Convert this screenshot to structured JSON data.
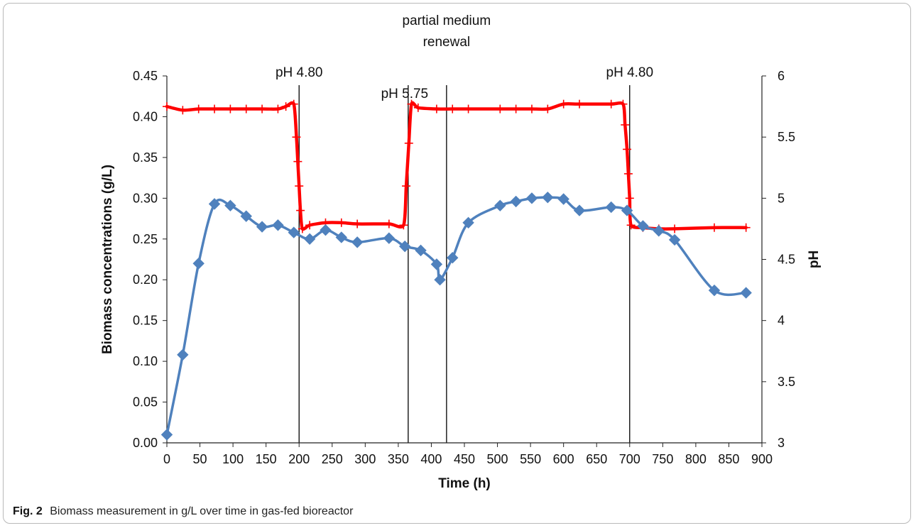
{
  "colors": {
    "biomass": "#4f81bd",
    "ph": "#ff0000",
    "axis": "#222222"
  },
  "caption": {
    "label": "Fig. 2",
    "text": "Biomass measurement in g/L over time in gas-fed bioreactor"
  },
  "chart_data": {
    "type": "line",
    "xlabel": "Time (h)",
    "ylabel": "Biomass concentrations (g/L)",
    "y2label": "pH",
    "xlim": [
      0,
      900
    ],
    "ylim": [
      0,
      0.45
    ],
    "y2lim": [
      3,
      6
    ],
    "xticks": [
      "0",
      "50",
      "100",
      "150",
      "200",
      "250",
      "300",
      "350",
      "400",
      "450",
      "500",
      "550",
      "600",
      "650",
      "700",
      "750",
      "800",
      "850",
      "900"
    ],
    "yticks": [
      "0.00",
      "0.05",
      "0.10",
      "0.15",
      "0.20",
      "0.25",
      "0.30",
      "0.35",
      "0.40",
      "0.45"
    ],
    "y2ticks": [
      "3",
      "3.5",
      "4",
      "4.5",
      "5",
      "5.5",
      "6"
    ],
    "grid": false,
    "series": [
      {
        "axis": "left",
        "marker": "diamond",
        "x": [
          0,
          24,
          48,
          72,
          96,
          120,
          144,
          168,
          192,
          216,
          240,
          264,
          288,
          336,
          360,
          384,
          408,
          413,
          432,
          456,
          504,
          528,
          552,
          576,
          600,
          624,
          672,
          696,
          720,
          744,
          768,
          828,
          876
        ],
        "y": [
          0.01,
          0.108,
          0.22,
          0.293,
          0.291,
          0.278,
          0.265,
          0.267,
          0.258,
          0.25,
          0.261,
          0.252,
          0.246,
          0.251,
          0.241,
          0.236,
          0.219,
          0.2,
          0.227,
          0.27,
          0.291,
          0.296,
          0.3,
          0.301,
          0.299,
          0.285,
          0.289,
          0.285,
          0.266,
          0.26,
          0.249,
          0.187,
          0.184
        ]
      },
      {
        "axis": "right",
        "marker": "plus",
        "x": [
          0,
          24,
          48,
          72,
          96,
          120,
          144,
          168,
          180,
          192,
          196,
          198,
          200,
          202,
          205,
          216,
          240,
          264,
          288,
          336,
          358,
          362,
          366,
          370,
          380,
          408,
          432,
          456,
          504,
          528,
          552,
          576,
          600,
          624,
          672,
          690,
          693,
          696,
          698,
          700,
          702,
          720,
          744,
          768,
          828,
          876
        ],
        "y": [
          5.75,
          5.72,
          5.73,
          5.73,
          5.73,
          5.73,
          5.73,
          5.73,
          5.75,
          5.77,
          5.5,
          5.3,
          5.1,
          4.9,
          4.75,
          4.78,
          4.8,
          4.8,
          4.79,
          4.79,
          4.78,
          5.1,
          5.45,
          5.77,
          5.74,
          5.73,
          5.73,
          5.73,
          5.73,
          5.73,
          5.73,
          5.73,
          5.77,
          5.77,
          5.77,
          5.77,
          5.6,
          5.4,
          5.2,
          5.0,
          4.78,
          4.76,
          4.75,
          4.75,
          4.76,
          4.76
        ]
      }
    ],
    "annotations": [
      {
        "lines": [
          "pH 4.80"
        ],
        "x": 200
      },
      {
        "lines": [
          "pH 5.75"
        ],
        "x": 365
      },
      {
        "lines": [
          "partial medium",
          "renewal"
        ],
        "x": 423
      },
      {
        "lines": [
          "pH 4.80"
        ],
        "x": 700
      }
    ]
  }
}
